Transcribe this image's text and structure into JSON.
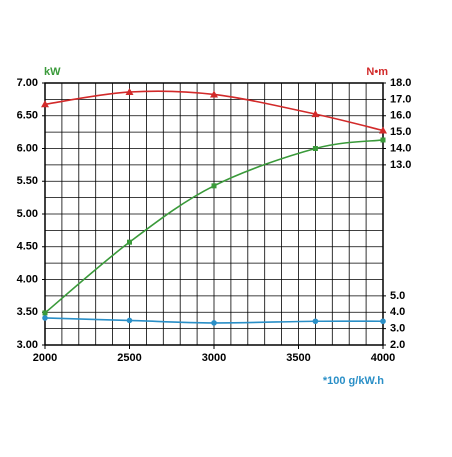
{
  "chart_data": {
    "type": "line",
    "y_label": "kW",
    "y2_label": "N•m",
    "y2_unit_note": "*100 g/kW.h",
    "x": [
      2000,
      2500,
      3000,
      3600,
      4000
    ],
    "xlim": [
      2000,
      4000
    ],
    "xticks": [
      2000,
      2500,
      3000,
      3500,
      4000
    ],
    "ylim": [
      3,
      7
    ],
    "yticks": [
      {
        "value": 3,
        "label": "3.00"
      },
      {
        "value": 3.5,
        "label": "3.50"
      },
      {
        "value": 4,
        "label": "4.00"
      },
      {
        "value": 4.5,
        "label": "4.50"
      },
      {
        "value": 5,
        "label": "5.00"
      },
      {
        "value": 5.5,
        "label": "5.50"
      },
      {
        "value": 6,
        "label": "6.00"
      },
      {
        "value": 6.5,
        "label": "6.50"
      },
      {
        "value": 7,
        "label": "7.00"
      }
    ],
    "y2lim": [
      2,
      18
    ],
    "y2ticks": [
      {
        "value": 2,
        "label": "2.0"
      },
      {
        "value": 3,
        "label": "3.0"
      },
      {
        "value": 4,
        "label": "4.0"
      },
      {
        "value": 5,
        "label": "5.0"
      },
      {
        "value": 13,
        "label": "13.0"
      },
      {
        "value": 14,
        "label": "14.0"
      },
      {
        "value": 15,
        "label": "15.0"
      },
      {
        "value": 16,
        "label": "16.0"
      },
      {
        "value": 17,
        "label": "17.0"
      },
      {
        "value": 18,
        "label": "18.0"
      }
    ],
    "grid": true,
    "xgrid_step": 100,
    "ygrid_step": 0.25,
    "series": [
      {
        "color": "#d22a2a",
        "marker": "triangle",
        "axis": "y2",
        "values": [
          16.7,
          17.45,
          17.3,
          16.1,
          15.1
        ]
      },
      {
        "color": "#3a9a3a",
        "marker": "square",
        "values": [
          3.49,
          4.57,
          5.43,
          6.0,
          6.13
        ]
      },
      {
        "color": "#2a8fc7",
        "marker": "circle",
        "axis": "y2",
        "values": [
          3.65,
          3.5,
          3.35,
          3.45,
          3.45
        ]
      }
    ]
  }
}
